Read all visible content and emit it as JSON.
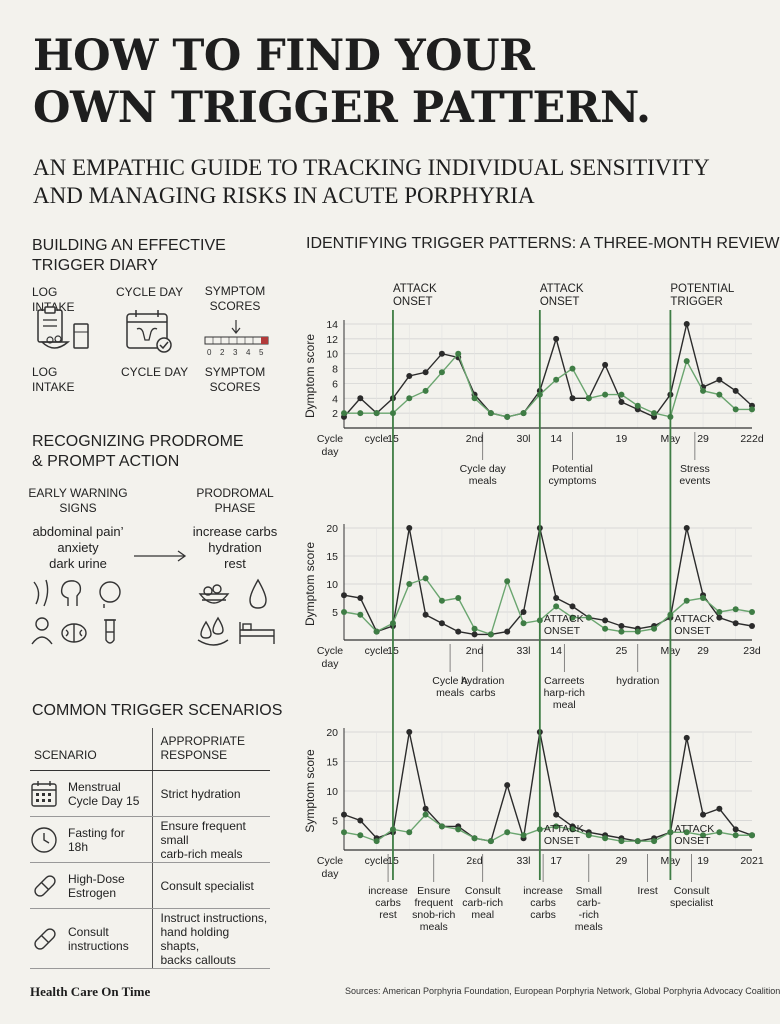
{
  "title_line1": "HOW TO FIND YOUR",
  "title_line2": "OWN TRIGGER PATTERN.",
  "subtitle_line1": "AN EMPATHIC GUIDE TO TRACKING INDIVIDUAL SENSITIVITY",
  "subtitle_line2": "AND MANAGING RISKS IN ACUTE PORPHYRIA",
  "diary": {
    "heading_line1": "BUILDING AN EFFECTIVE",
    "heading_line2": "TRIGGER DIARY",
    "top_labels": [
      "LOG INTAKE",
      "CYCLE DAY",
      "SYMPTOM",
      "SCORES"
    ],
    "bottom_labels": [
      "LOG INTAKE",
      "CYCLE DAY",
      "SYMPTOM",
      "SCORES"
    ],
    "scale_numbers": [
      "0",
      "2",
      "3",
      "4",
      "5"
    ],
    "icons": [
      "clipboard-food-icon",
      "calendar-uterus-icon",
      "symptom-scale-icon"
    ]
  },
  "prodrome": {
    "heading_line1": "RECOGNIZING PRODROME",
    "heading_line2": "& PROMPT ACTION",
    "early_label_1": "EARLY WARNING",
    "early_label_2": "SIGNS",
    "early_items": [
      "abdominal pain’",
      "anxiety",
      "dark urine"
    ],
    "phase_label_1": "PRODROMAL",
    "phase_label_2": "PHASE",
    "phase_items": [
      "increase carbs",
      "hydration",
      "rest"
    ]
  },
  "scenarios": {
    "heading": "COMMON TRIGGER SCENARIOS",
    "col1": "SCENARIO",
    "col2_line1": "APPROPRIATE",
    "col2_line2": "RESPONSE",
    "rows": [
      {
        "s1": "Menstrual",
        "s2": "Cycle Day 15",
        "r1": "Strict hydration",
        "r2": "",
        "r3": "",
        "icon": "calendar-icon"
      },
      {
        "s1": "Fasting for",
        "s2": "18h",
        "r1": "Ensure frequent small",
        "r2": "carb-rich meals",
        "r3": "",
        "icon": "clock-icon"
      },
      {
        "s1": "High-Dose",
        "s2": "Estrogen",
        "r1": "Consult specialist",
        "r2": "",
        "r3": "",
        "icon": "pill-icon"
      },
      {
        "s1": "Consult",
        "s2": "instructions",
        "r1": "Instruct instructions,",
        "r2": "hand holding shapts,",
        "r3": "backs callouts",
        "icon": "pill-icon"
      }
    ]
  },
  "footer": {
    "brand": "Health Care On Time",
    "sources": "Sources: American Porphyria Foundation, European Porphyria Network, Global Porphyria Advocacy Coalition"
  },
  "colors": {
    "green": "#3f7d45",
    "green_light": "#6aa56f",
    "dark": "#2b2b2b",
    "grid": "#cfcfcf"
  },
  "chart_data": {
    "type": "line",
    "title": "IDENTIFYING TRIGGER PATTERNS: A THREE-MONTH REVIEW",
    "top_markers": [
      {
        "l1": "ATTACK",
        "l2": "ONSET"
      },
      {
        "l1": "ATTACK",
        "l2": "ONSET"
      },
      {
        "l1": "POTENTIAL",
        "l2": "TRIGGER"
      }
    ],
    "panels": [
      {
        "ylabel": "Dymptom score",
        "ylim": [
          0,
          14
        ],
        "yticks": [
          2,
          4,
          6,
          8,
          10,
          12,
          14
        ],
        "x": [
          0,
          1,
          2,
          3,
          4,
          5,
          6,
          7,
          8,
          9,
          10,
          11,
          12,
          13,
          14,
          15,
          16,
          17,
          18,
          19,
          20,
          21,
          22,
          23,
          24,
          25
        ],
        "series": [
          {
            "values": [
              1.5,
              4,
              2,
              4,
              7,
              7.5,
              10,
              9.5,
              4.5,
              2,
              1.5,
              2,
              5,
              12,
              4,
              4,
              8.5,
              3.5,
              2.5,
              1.5,
              4.5,
              14,
              5.5,
              6.5,
              5,
              3
            ]
          },
          {
            "values": [
              2,
              2,
              2,
              2,
              4,
              5,
              7.5,
              10,
              4,
              2,
              1.5,
              2,
              4.5,
              6.5,
              8,
              4,
              4.5,
              4.5,
              3,
              2,
              1.5,
              9,
              5,
              4.5,
              2.5,
              2.5
            ]
          }
        ],
        "xticks": [
          "Cycle",
          "cycle",
          "15",
          "2nd",
          "30l",
          "14",
          "19",
          "May",
          "29",
          "222d"
        ],
        "markers": [
          "",
          "",
          ""
        ],
        "annotations": [
          {
            "l1": "Cycle day",
            "l2": "meals"
          },
          {
            "l1": "Potential",
            "l2": "cymptoms"
          },
          {
            "l1": "Stress",
            "l2": "events"
          }
        ]
      },
      {
        "ylabel": "Dymptom score",
        "ylim": [
          0,
          20
        ],
        "yticks": [
          5,
          10,
          15,
          20
        ],
        "x": [
          0,
          1,
          2,
          3,
          4,
          5,
          6,
          7,
          8,
          9,
          10,
          11,
          12,
          13,
          14,
          15,
          16,
          17,
          18,
          19,
          20,
          21,
          22,
          23,
          24,
          25
        ],
        "series": [
          {
            "values": [
              8,
              7.5,
              1.5,
              2.5,
              20,
              4.5,
              3,
              1.5,
              1,
              1,
              1.5,
              5,
              20,
              7.5,
              6,
              4,
              3.5,
              2.5,
              2,
              2.5,
              4,
              20,
              8,
              4,
              3,
              2.5
            ]
          },
          {
            "values": [
              5,
              4.5,
              1.5,
              3,
              10,
              11,
              7,
              7.5,
              2,
              1,
              10.5,
              3,
              3.5,
              6,
              4,
              4,
              2,
              1.5,
              1.5,
              2,
              4.5,
              7,
              7.5,
              5,
              5.5,
              5
            ]
          }
        ],
        "xticks": [
          "Cycle",
          "cycle",
          "15",
          "2nd",
          "33l",
          "14",
          "25",
          "May",
          "29",
          "23d"
        ],
        "markers": [
          "",
          "ATTACK ONSET",
          "ATTACK ONSET"
        ],
        "annotations": [
          {
            "l1": "Cycle A",
            "l2": "meals"
          },
          {
            "l1": "hydration",
            "l2": "carbs"
          },
          {
            "l1": "Carreets",
            "l2": "harp-rich",
            "l3": "meal"
          },
          {
            "l1": "hydration",
            "l2": ""
          }
        ]
      },
      {
        "ylabel": "Symptom score",
        "ylim": [
          0,
          20
        ],
        "yticks": [
          5,
          10,
          15,
          20
        ],
        "x": [
          0,
          1,
          2,
          3,
          4,
          5,
          6,
          7,
          8,
          9,
          10,
          11,
          12,
          13,
          14,
          15,
          16,
          17,
          18,
          19,
          20,
          21,
          22,
          23,
          24,
          25
        ],
        "series": [
          {
            "values": [
              6,
              5,
              2,
              3,
              20,
              7,
              4,
              4,
              2,
              1.5,
              11,
              2,
              20,
              6,
              4,
              3,
              2.5,
              2,
              1.5,
              2,
              3,
              19,
              6,
              7,
              3.5,
              2.5
            ]
          },
          {
            "values": [
              3,
              2.5,
              1.5,
              3.5,
              3,
              6,
              4,
              3.5,
              2,
              1.5,
              3,
              2.5,
              3.5,
              4,
              3.5,
              2.5,
              2,
              1.5,
              1.5,
              1.5,
              3,
              3,
              2.5,
              3,
              2.5,
              2.5
            ]
          }
        ],
        "xticks": [
          "Cycle",
          "cycle",
          "15",
          "2εd",
          "33l",
          "17",
          "29",
          "May",
          "19",
          "2021"
        ],
        "markers": [
          "",
          "ATTACK ONSET",
          "ATTACK ONSET"
        ],
        "annotations": [
          {
            "l1": "increase",
            "l2": "carbs",
            "l3": "rest"
          },
          {
            "l1": "Ensure",
            "l2": "frequent",
            "l3": "snob-rich",
            "l4": "meals"
          },
          {
            "l1": "Consult",
            "l2": "carb-rich",
            "l3": "meal"
          },
          {
            "l1": "increase",
            "l2": "carbs",
            "l3": "carbs"
          },
          {
            "l1": "Small",
            "l2": "carb-",
            "l3": "-rich",
            "l4": "meals"
          },
          {
            "l1": "Irest",
            "l2": ""
          },
          {
            "l1": "Consult",
            "l2": "specialist"
          }
        ]
      }
    ],
    "xlabel_line1": "Cycle",
    "xlabel_line2": "day"
  }
}
